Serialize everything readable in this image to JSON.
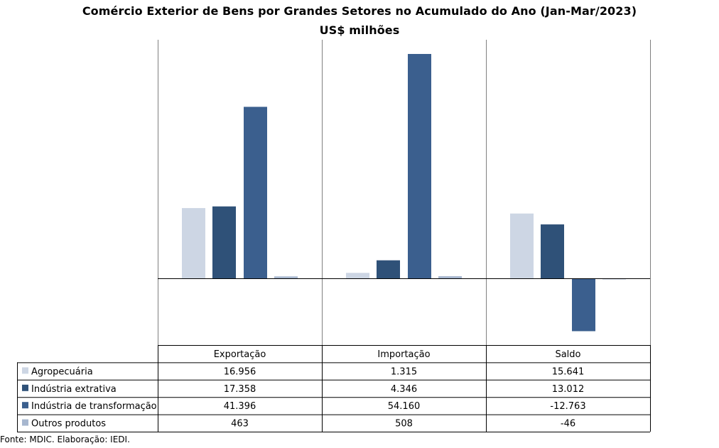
{
  "title": "Comércio Exterior de Bens por Grandes Setores no Acumulado do Ano (Jan-Mar/2023)",
  "subtitle": "US$ milhões",
  "source": "Fonte: MDIC. Elaboração: IEDI.",
  "chart_data": {
    "type": "bar",
    "categories": [
      "Exportação",
      "Importação",
      "Saldo"
    ],
    "series": [
      {
        "name": "Agropecuária",
        "color": "#cdd6e4",
        "values": [
          16956,
          1315,
          15641
        ],
        "labels": [
          "16.956",
          "1.315",
          "15.641"
        ]
      },
      {
        "name": "Indústria extrativa",
        "color": "#2f5178",
        "values": [
          17358,
          4346,
          13012
        ],
        "labels": [
          "17.358",
          "4.346",
          "13.012"
        ]
      },
      {
        "name": "Indústria de transformação",
        "color": "#3b5f8e",
        "values": [
          41396,
          54160,
          -12763
        ],
        "labels": [
          "41.396",
          "54.160",
          "-12.763"
        ]
      },
      {
        "name": "Outros produtos",
        "color": "#a7b7cf",
        "values": [
          463,
          508,
          -46
        ],
        "labels": [
          "463",
          "508",
          "-46"
        ]
      }
    ],
    "xlabel": "",
    "ylabel": "",
    "ylim": [
      -15800,
      57600
    ],
    "grid": false,
    "legend": "data-table-left"
  }
}
